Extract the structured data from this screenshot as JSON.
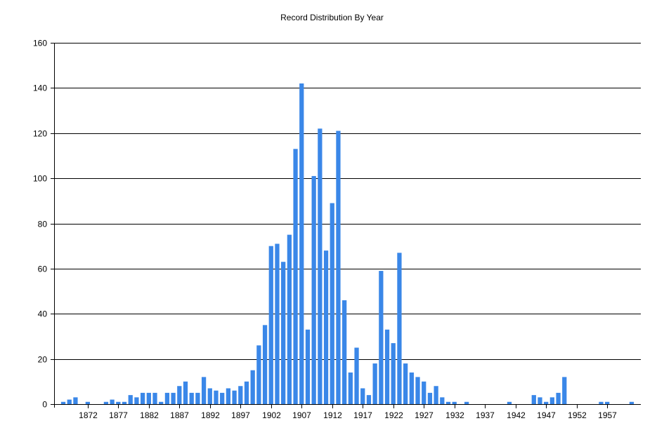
{
  "chart_data": {
    "type": "bar",
    "title": "Record Distribution By Year",
    "xlabel": "",
    "ylabel": "",
    "ylim": [
      0,
      160
    ],
    "yticks": [
      0,
      20,
      40,
      60,
      80,
      100,
      120,
      140,
      160
    ],
    "xlim": [
      1867,
      1962
    ],
    "xticks": [
      1872,
      1877,
      1882,
      1887,
      1892,
      1897,
      1902,
      1907,
      1912,
      1917,
      1922,
      1927,
      1932,
      1937,
      1942,
      1947,
      1952,
      1957
    ],
    "grid": true,
    "bar_color": "#3a87e8",
    "x": [
      1868,
      1869,
      1870,
      1872,
      1875,
      1876,
      1877,
      1878,
      1879,
      1880,
      1881,
      1882,
      1883,
      1884,
      1885,
      1886,
      1887,
      1888,
      1889,
      1890,
      1891,
      1892,
      1893,
      1894,
      1895,
      1896,
      1897,
      1898,
      1899,
      1900,
      1901,
      1902,
      1903,
      1904,
      1905,
      1906,
      1907,
      1908,
      1909,
      1910,
      1911,
      1912,
      1913,
      1914,
      1915,
      1916,
      1917,
      1918,
      1919,
      1920,
      1921,
      1922,
      1923,
      1924,
      1925,
      1926,
      1927,
      1928,
      1929,
      1930,
      1931,
      1932,
      1934,
      1941,
      1945,
      1946,
      1947,
      1948,
      1949,
      1950,
      1956,
      1957,
      1961
    ],
    "values": [
      1,
      2,
      3,
      1,
      1,
      2,
      1,
      1,
      4,
      3,
      5,
      5,
      5,
      1,
      5,
      5,
      8,
      10,
      5,
      5,
      12,
      7,
      6,
      5,
      7,
      6,
      8,
      10,
      15,
      26,
      35,
      70,
      71,
      63,
      75,
      113,
      142,
      33,
      101,
      122,
      68,
      89,
      121,
      46,
      14,
      25,
      7,
      4,
      18,
      59,
      33,
      27,
      67,
      18,
      14,
      12,
      10,
      5,
      8,
      3,
      1,
      1,
      1,
      1,
      4,
      3,
      1,
      3,
      5,
      12,
      1,
      1,
      1
    ]
  }
}
